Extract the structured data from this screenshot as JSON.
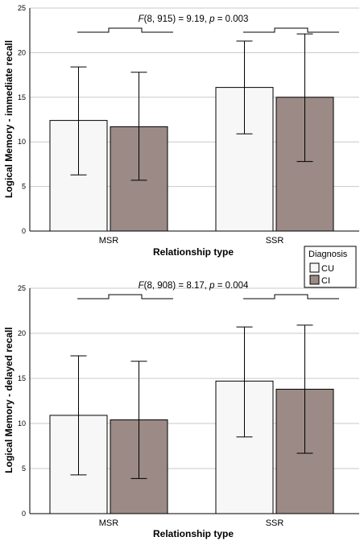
{
  "colors": {
    "cu_fill": "#f7f7f7",
    "ci_fill": "#9b8a86",
    "grid": "#c8c8c8",
    "axis": "#000000"
  },
  "legend": {
    "title": "Diagnosis",
    "items": [
      {
        "label": "CU",
        "color": "#f7f7f7"
      },
      {
        "label": "CI",
        "color": "#9b8a86"
      }
    ]
  },
  "chart_data": [
    {
      "type": "bar",
      "categories": [
        "MSR",
        "SSR"
      ],
      "series": [
        {
          "name": "CU",
          "values": [
            12.4,
            16.1
          ],
          "error_low": [
            6.3,
            10.9
          ],
          "error_high": [
            18.4,
            21.3
          ]
        },
        {
          "name": "CI",
          "values": [
            11.7,
            15.0
          ],
          "error_low": [
            5.7,
            7.8
          ],
          "error_high": [
            17.8,
            22.1
          ]
        }
      ],
      "ylim": [
        0,
        25
      ],
      "yticks": [
        "0",
        "5",
        "10",
        "15",
        "20",
        "25"
      ],
      "xlabel": "Relationship type",
      "ylabel": "Logical Memory - immediate recall",
      "annotation": {
        "italic_f": "F",
        "mid": "(8, 915) = 9.19, ",
        "italic_p": "p",
        "end": " = 0.003"
      },
      "grid": true
    },
    {
      "type": "bar",
      "categories": [
        "MSR",
        "SSR"
      ],
      "series": [
        {
          "name": "CU",
          "values": [
            10.9,
            14.7
          ],
          "error_low": [
            4.3,
            8.5
          ],
          "error_high": [
            17.5,
            20.7
          ]
        },
        {
          "name": "CI",
          "values": [
            10.4,
            13.8
          ],
          "error_low": [
            3.9,
            6.7
          ],
          "error_high": [
            16.9,
            20.9
          ]
        }
      ],
      "ylim": [
        0,
        25
      ],
      "yticks": [
        "0",
        "5",
        "10",
        "15",
        "20",
        "25"
      ],
      "xlabel": "Relationship type",
      "ylabel": "Logical Memory - delayed recall",
      "annotation": {
        "italic_f": "F",
        "mid": "(8, 908) = 8.17, ",
        "italic_p": "p",
        "end": " = 0.004"
      },
      "grid": true
    }
  ]
}
